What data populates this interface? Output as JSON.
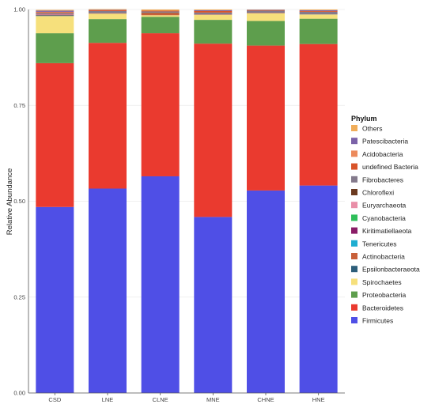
{
  "chart_data": {
    "type": "bar",
    "stacked": true,
    "ylabel": "Relative Abundance",
    "xlabel": "",
    "ylim": [
      0,
      1
    ],
    "yticks": [
      "0.00",
      "0.25",
      "0.50",
      "0.75",
      "1.00"
    ],
    "grid": true,
    "legend_position": "right",
    "legend_title": "Phylum",
    "categories": [
      "CSD",
      "LNE",
      "CLNE",
      "MNE",
      "CHNE",
      "HNE"
    ],
    "series": [
      {
        "name": "Firmicutes",
        "color": "#4f4fe6",
        "values": [
          0.485,
          0.533,
          0.565,
          0.459,
          0.528,
          0.541
        ]
      },
      {
        "name": "Bacteroidetes",
        "color": "#ea3a2f",
        "values": [
          0.375,
          0.38,
          0.373,
          0.452,
          0.378,
          0.369
        ]
      },
      {
        "name": "Proteobacteria",
        "color": "#5e9e4d",
        "values": [
          0.078,
          0.062,
          0.043,
          0.062,
          0.064,
          0.066
        ]
      },
      {
        "name": "Spirochaetes",
        "color": "#f6e07c",
        "values": [
          0.045,
          0.014,
          0.004,
          0.013,
          0.02,
          0.011
        ]
      },
      {
        "name": "Epsilonbacteraeota",
        "color": "#2d5e7a",
        "values": [
          0.002,
          0.0,
          0.0,
          0.0,
          0.0,
          0.0
        ]
      },
      {
        "name": "Actinobacteria",
        "color": "#c8603a",
        "values": [
          0.001,
          0.001,
          0.006,
          0.001,
          0.001,
          0.0
        ]
      },
      {
        "name": "Tenericutes",
        "color": "#1faed1",
        "values": [
          0.0,
          0.0,
          0.0,
          0.0,
          0.0,
          0.0
        ]
      },
      {
        "name": "Kiritimatiellaeota",
        "color": "#8a1d67",
        "values": [
          0.001,
          0.0,
          0.0,
          0.0,
          0.0,
          0.0
        ]
      },
      {
        "name": "Cyanobacteria",
        "color": "#2fbf5a",
        "values": [
          0.0,
          0.0,
          0.0,
          0.0,
          0.0,
          0.0
        ]
      },
      {
        "name": "Euryarchaeota",
        "color": "#e98fa8",
        "values": [
          0.001,
          0.0,
          0.0,
          0.0,
          0.0,
          0.0
        ]
      },
      {
        "name": "Chloroflexi",
        "color": "#6b3a1f",
        "values": [
          0.001,
          0.0,
          0.001,
          0.0,
          0.0,
          0.0
        ]
      },
      {
        "name": "Fibrobacteres",
        "color": "#847a8c",
        "values": [
          0.002,
          0.006,
          0.003,
          0.005,
          0.006,
          0.007
        ]
      },
      {
        "name": "undefined Bacteria",
        "color": "#d8542a",
        "values": [
          0.002,
          0.002,
          0.002,
          0.004,
          0.001,
          0.002
        ]
      },
      {
        "name": "Acidobacteria",
        "color": "#ec8a5c",
        "values": [
          0.001,
          0.0,
          0.0,
          0.0,
          0.0,
          0.0
        ]
      },
      {
        "name": "Patescibacteria",
        "color": "#7b62a8",
        "values": [
          0.003,
          0.001,
          0.0,
          0.002,
          0.001,
          0.002
        ]
      },
      {
        "name": "Others",
        "color": "#f0ad5a",
        "values": [
          0.002,
          0.002,
          0.003,
          0.002,
          0.001,
          0.002
        ]
      }
    ],
    "legend_order": [
      "Others",
      "Patescibacteria",
      "Acidobacteria",
      "undefined Bacteria",
      "Fibrobacteres",
      "Chloroflexi",
      "Euryarchaeota",
      "Cyanobacteria",
      "Kiritimatiellaeota",
      "Tenericutes",
      "Actinobacteria",
      "Epsilonbacteraeota",
      "Spirochaetes",
      "Proteobacteria",
      "Bacteroidetes",
      "Firmicutes"
    ]
  }
}
